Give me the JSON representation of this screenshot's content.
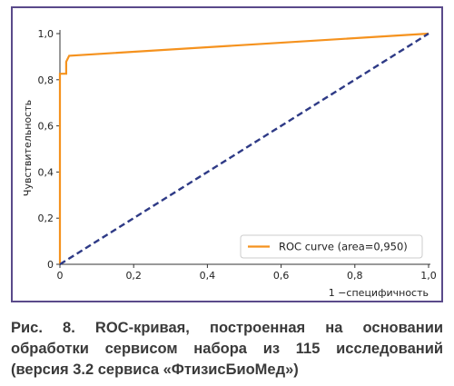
{
  "chart_data": {
    "type": "line",
    "xlabel": "1 −специфичность",
    "ylabel": "Чувствительность",
    "xlim": [
      0,
      1
    ],
    "ylim": [
      0,
      1
    ],
    "xticks": [
      0,
      0.2,
      0.4,
      0.6,
      0.8,
      1.0
    ],
    "yticks": [
      0,
      0.2,
      0.4,
      0.6,
      0.8,
      1.0
    ],
    "xtick_labels": [
      "0",
      "0,2",
      "0,4",
      "0,6",
      "0,8",
      "1,0"
    ],
    "ytick_labels": [
      "0",
      "0,2",
      "0,4",
      "0,6",
      "0,8",
      "1,0"
    ],
    "grid": false,
    "legend_position": "lower-right",
    "series": [
      {
        "name": "ROC curve (area=0,950)",
        "color": "#f5921e",
        "style": "solid",
        "x": [
          0,
          0,
          0.017,
          0.017,
          0.025,
          1.0
        ],
        "y": [
          0,
          0.826,
          0.826,
          0.878,
          0.904,
          1.0
        ]
      },
      {
        "color": "#2e3a86",
        "style": "dashed",
        "x": [
          0,
          1
        ],
        "y": [
          0,
          1
        ]
      }
    ]
  },
  "caption": "Рис. 8. ROC-кривая, построенная на основании обработки сервисом  набора из 115 исследований (версия 3.2 сервиса «ФтизисБиоМед»)"
}
